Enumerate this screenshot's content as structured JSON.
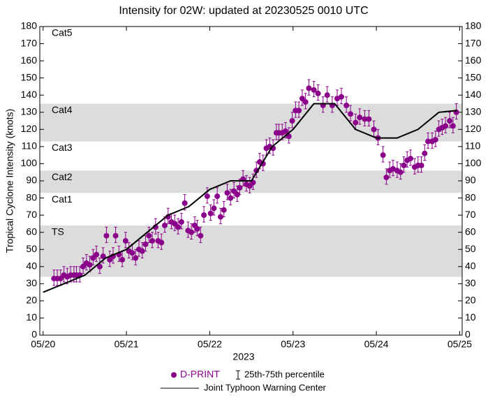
{
  "chart_data": {
    "type": "scatter-line",
    "title": "Intensity for 02W: updated at 20230525 0010 UTC",
    "xlabel": "2023",
    "ylabel": "Tropical Cyclone Intensity (knots)",
    "xlim": [
      -0.04,
      5.03
    ],
    "ylim": [
      0,
      180
    ],
    "xticks": [
      {
        "value": 0,
        "label": "05/20"
      },
      {
        "value": 1,
        "label": "05/21"
      },
      {
        "value": 2,
        "label": "05/22"
      },
      {
        "value": 3,
        "label": "05/23"
      },
      {
        "value": 4,
        "label": "05/24"
      },
      {
        "value": 5,
        "label": "05/25"
      }
    ],
    "yticks": [
      0,
      10,
      20,
      30,
      40,
      50,
      60,
      70,
      80,
      90,
      100,
      110,
      120,
      130,
      140,
      150,
      160,
      170,
      180
    ],
    "bands": [
      {
        "label": "TS",
        "range": [
          34,
          64
        ],
        "shaded": true
      },
      {
        "label": "Cat1",
        "range": [
          64,
          83
        ],
        "shaded": false
      },
      {
        "label": "Cat2",
        "range": [
          83,
          96
        ],
        "shaded": true
      },
      {
        "label": "Cat3",
        "range": [
          96,
          113
        ],
        "shaded": false
      },
      {
        "label": "Cat4",
        "range": [
          113,
          135
        ],
        "shaded": true
      },
      {
        "label": "Cat5",
        "range": [
          135,
          180
        ],
        "shaded": false
      }
    ],
    "errorbar_label": "25th-75th percentile",
    "series": [
      {
        "name": "D-PRINT",
        "color": "#8b008b",
        "kind": "points",
        "x": [
          0.13,
          0.17,
          0.21,
          0.25,
          0.29,
          0.33,
          0.37,
          0.4,
          0.44,
          0.48,
          0.52,
          0.56,
          0.6,
          0.64,
          0.68,
          0.72,
          0.76,
          0.8,
          0.84,
          0.87,
          0.91,
          0.95,
          0.99,
          1.03,
          1.07,
          1.11,
          1.15,
          1.19,
          1.23,
          1.27,
          1.31,
          1.35,
          1.38,
          1.42,
          1.46,
          1.5,
          1.54,
          1.58,
          1.62,
          1.66,
          1.7,
          1.74,
          1.78,
          1.82,
          1.85,
          1.89,
          1.93,
          1.97,
          2.01,
          2.05,
          2.09,
          2.13,
          2.17,
          2.21,
          2.25,
          2.29,
          2.33,
          2.36,
          2.4,
          2.44,
          2.48,
          2.52,
          2.56,
          2.6,
          2.64,
          2.68,
          2.72,
          2.76,
          2.8,
          2.83,
          2.87,
          2.91,
          2.95,
          2.99,
          3.03,
          3.07,
          3.11,
          3.15,
          3.19,
          3.25,
          3.3,
          3.36,
          3.41,
          3.47,
          3.53,
          3.58,
          3.64,
          3.69,
          3.75,
          3.8,
          3.86,
          3.91,
          3.97,
          4.02,
          4.08,
          4.12,
          4.16,
          4.2,
          4.25,
          4.29,
          4.33,
          4.37,
          4.41,
          4.46,
          4.5,
          4.54,
          4.58,
          4.62,
          4.67,
          4.71,
          4.75,
          4.79,
          4.83,
          4.88,
          4.92,
          4.96
        ],
        "values": [
          33,
          33,
          33,
          35,
          34,
          35,
          35,
          35,
          35,
          40,
          42,
          41,
          45,
          47,
          40,
          46,
          58,
          44,
          46,
          58,
          47,
          44,
          55,
          49,
          48,
          45,
          50,
          49,
          53,
          58,
          55,
          63,
          55,
          54,
          64,
          69,
          66,
          65,
          63,
          66,
          77,
          61,
          60,
          64,
          62,
          58,
          70,
          81,
          71,
          74,
          81,
          69,
          73,
          83,
          80,
          84,
          82,
          86,
          91,
          88,
          87,
          89,
          96,
          101,
          100,
          109,
          110,
          109,
          118,
          118,
          118,
          119,
          116,
          125,
          131,
          131,
          138,
          136,
          144,
          143,
          141,
          134,
          140,
          134,
          138,
          139,
          134,
          129,
          124,
          127,
          126,
          126,
          120,
          115,
          105,
          92,
          96,
          97,
          96,
          95,
          99,
          102,
          103,
          98,
          99,
          99,
          106,
          113,
          113,
          114,
          120,
          121,
          122,
          125,
          122,
          130
        ],
        "p25": [
          29,
          29,
          29,
          31,
          30,
          31,
          31,
          31,
          31,
          36,
          38,
          37,
          41,
          43,
          36,
          42,
          54,
          40,
          42,
          54,
          43,
          40,
          51,
          45,
          44,
          41,
          46,
          45,
          49,
          54,
          51,
          59,
          51,
          50,
          60,
          65,
          62,
          61,
          59,
          62,
          73,
          57,
          56,
          60,
          58,
          54,
          66,
          77,
          67,
          70,
          77,
          65,
          69,
          79,
          76,
          80,
          78,
          82,
          87,
          84,
          83,
          85,
          92,
          97,
          96,
          105,
          106,
          105,
          114,
          114,
          114,
          115,
          112,
          121,
          127,
          127,
          134,
          132,
          140,
          139,
          137,
          130,
          136,
          130,
          134,
          135,
          130,
          125,
          120,
          123,
          122,
          122,
          116,
          111,
          101,
          88,
          92,
          93,
          92,
          91,
          95,
          98,
          99,
          94,
          95,
          95,
          102,
          109,
          109,
          110,
          116,
          117,
          118,
          121,
          118,
          126
        ],
        "p75": [
          38,
          38,
          38,
          40,
          39,
          40,
          40,
          40,
          40,
          45,
          47,
          46,
          50,
          52,
          45,
          51,
          63,
          49,
          51,
          63,
          52,
          49,
          60,
          54,
          53,
          50,
          55,
          54,
          58,
          63,
          60,
          68,
          60,
          59,
          69,
          74,
          71,
          70,
          68,
          71,
          82,
          66,
          65,
          69,
          67,
          63,
          75,
          86,
          76,
          79,
          86,
          74,
          78,
          88,
          85,
          89,
          87,
          91,
          96,
          93,
          92,
          94,
          101,
          106,
          105,
          114,
          115,
          114,
          123,
          123,
          123,
          124,
          121,
          130,
          136,
          136,
          143,
          141,
          149,
          148,
          146,
          139,
          145,
          139,
          143,
          144,
          139,
          134,
          129,
          132,
          131,
          131,
          125,
          120,
          110,
          97,
          101,
          102,
          101,
          100,
          104,
          107,
          108,
          103,
          104,
          104,
          111,
          118,
          118,
          119,
          125,
          126,
          127,
          130,
          127,
          135
        ]
      },
      {
        "name": "Joint Typhoon Warning Center",
        "color": "#000000",
        "kind": "line",
        "x": [
          0,
          0.5,
          0.75,
          1,
          1.25,
          1.5,
          1.75,
          2,
          2.25,
          2.5,
          2.75,
          3,
          3.25,
          3.5,
          3.75,
          4,
          4.25,
          4.5,
          4.75,
          4.97
        ],
        "values": [
          25,
          35,
          45,
          50,
          60,
          70,
          75,
          85,
          90,
          90,
          110,
          120,
          135,
          135,
          120,
          115,
          115,
          120,
          130,
          131
        ]
      }
    ]
  }
}
